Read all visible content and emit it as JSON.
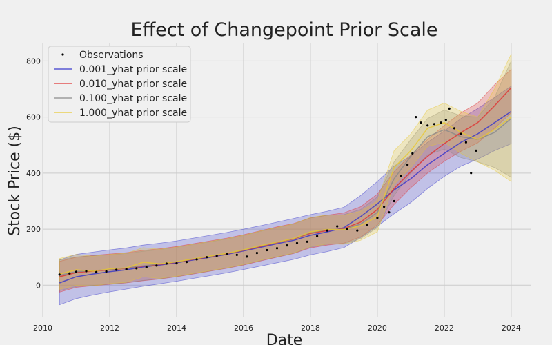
{
  "chart_data": {
    "type": "line",
    "title": "Effect of Changepoint Prior Scale",
    "xlabel": "Date",
    "ylabel": "Stock Price ($)",
    "xlim": [
      2010,
      2024.6
    ],
    "ylim": [
      -115,
      865
    ],
    "x_ticks": [
      2010,
      2012,
      2014,
      2016,
      2018,
      2020,
      2022,
      2024
    ],
    "y_ticks": [
      0,
      200,
      400,
      600,
      800
    ],
    "grid": true,
    "legend_position": "top-left",
    "colors": {
      "observations": "#000000",
      "s001": "#3333cc",
      "s010": "#e03030",
      "s100": "#888888",
      "s1000": "#e8c830"
    },
    "series": [
      {
        "name": "Observations",
        "kind": "scatter",
        "x": [
          2010.5,
          2010.8,
          2011.0,
          2011.3,
          2011.6,
          2011.9,
          2012.2,
          2012.5,
          2012.8,
          2013.1,
          2013.4,
          2013.7,
          2014.0,
          2014.3,
          2014.6,
          2014.9,
          2015.2,
          2015.5,
          2015.8,
          2016.1,
          2016.4,
          2016.7,
          2017.0,
          2017.3,
          2017.6,
          2017.9,
          2018.2,
          2018.5,
          2018.8,
          2019.1,
          2019.4,
          2019.7,
          2020.0,
          2020.2,
          2020.35,
          2020.5,
          2020.7,
          2020.9,
          2021.05,
          2021.15,
          2021.3,
          2021.5,
          2021.7,
          2021.9,
          2022.05,
          2022.15,
          2022.3,
          2022.5,
          2022.65,
          2022.8,
          2022.95
        ],
        "y": [
          38,
          42,
          48,
          50,
          47,
          49,
          55,
          57,
          60,
          64,
          70,
          77,
          78,
          83,
          92,
          100,
          105,
          112,
          108,
          102,
          115,
          125,
          132,
          142,
          150,
          155,
          175,
          195,
          210,
          200,
          195,
          215,
          240,
          280,
          260,
          300,
          390,
          430,
          470,
          600,
          580,
          570,
          575,
          580,
          590,
          630,
          560,
          540,
          510,
          400,
          480
        ]
      },
      {
        "name": "0.001_yhat prior scale",
        "kind": "line",
        "x": [
          2010.5,
          2011.0,
          2011.5,
          2012.0,
          2012.5,
          2013.0,
          2013.5,
          2014.0,
          2014.5,
          2015.0,
          2015.5,
          2016.0,
          2016.5,
          2017.0,
          2017.5,
          2018.0,
          2018.5,
          2019.0,
          2019.5,
          2020.0,
          2020.5,
          2021.0,
          2021.5,
          2022.0,
          2022.5,
          2023.0,
          2023.5,
          2024.0
        ],
        "y": [
          8,
          30,
          40,
          48,
          55,
          65,
          72,
          80,
          90,
          100,
          110,
          122,
          135,
          148,
          160,
          178,
          190,
          205,
          245,
          290,
          340,
          380,
          430,
          470,
          510,
          540,
          580,
          620
        ],
        "lower": [
          -70,
          -48,
          -35,
          -24,
          -14,
          -4,
          5,
          14,
          24,
          34,
          44,
          56,
          68,
          80,
          92,
          108,
          120,
          134,
          170,
          210,
          255,
          295,
          345,
          388,
          425,
          450,
          480,
          505
        ],
        "upper": [
          90,
          110,
          118,
          126,
          133,
          143,
          150,
          158,
          168,
          178,
          188,
          200,
          212,
          225,
          238,
          252,
          264,
          278,
          320,
          370,
          425,
          462,
          510,
          550,
          595,
          630,
          670,
          710
        ]
      },
      {
        "name": "0.010_yhat prior scale",
        "kind": "line",
        "x": [
          2010.5,
          2011.0,
          2011.5,
          2012.0,
          2012.5,
          2013.0,
          2013.5,
          2014.0,
          2014.5,
          2015.0,
          2015.5,
          2016.0,
          2016.5,
          2017.0,
          2017.5,
          2018.0,
          2018.5,
          2019.0,
          2019.5,
          2020.0,
          2020.5,
          2021.0,
          2021.5,
          2022.0,
          2022.5,
          2023.0,
          2023.5,
          2024.0
        ],
        "y": [
          30,
          45,
          50,
          55,
          60,
          68,
          74,
          82,
          92,
          102,
          112,
          124,
          138,
          152,
          165,
          185,
          195,
          202,
          225,
          270,
          345,
          405,
          460,
          505,
          545,
          580,
          640,
          705
        ],
        "lower": [
          -25,
          -8,
          -2,
          3,
          8,
          16,
          22,
          30,
          40,
          50,
          60,
          72,
          86,
          100,
          113,
          133,
          143,
          150,
          172,
          215,
          288,
          348,
          400,
          442,
          478,
          508,
          560,
          615
        ],
        "upper": [
          85,
          100,
          106,
          111,
          116,
          124,
          130,
          138,
          148,
          158,
          168,
          180,
          194,
          208,
          220,
          240,
          250,
          258,
          280,
          325,
          405,
          465,
          520,
          570,
          615,
          650,
          715,
          770
        ]
      },
      {
        "name": "0.100_yhat prior scale",
        "kind": "line",
        "x": [
          2010.5,
          2011.0,
          2011.5,
          2012.0,
          2012.5,
          2013.0,
          2013.5,
          2014.0,
          2014.5,
          2015.0,
          2015.5,
          2016.0,
          2016.5,
          2017.0,
          2017.5,
          2018.0,
          2018.5,
          2019.0,
          2019.5,
          2020.0,
          2020.5,
          2021.0,
          2021.5,
          2022.0,
          2022.5,
          2023.0,
          2023.5,
          2024.0
        ],
        "y": [
          35,
          48,
          52,
          56,
          61,
          69,
          75,
          83,
          93,
          103,
          113,
          125,
          140,
          153,
          166,
          188,
          198,
          200,
          218,
          260,
          380,
          460,
          530,
          555,
          530,
          520,
          545,
          595
        ],
        "lower": [
          -20,
          -5,
          -1,
          4,
          9,
          17,
          23,
          31,
          41,
          51,
          61,
          73,
          88,
          101,
          114,
          136,
          146,
          148,
          166,
          205,
          320,
          400,
          465,
          485,
          455,
          440,
          420,
          385
        ],
        "upper": [
          90,
          101,
          105,
          108,
          113,
          121,
          127,
          135,
          145,
          155,
          165,
          177,
          192,
          205,
          218,
          240,
          250,
          252,
          270,
          315,
          440,
          520,
          595,
          625,
          605,
          600,
          670,
          800
        ]
      },
      {
        "name": "1.000_yhat prior scale",
        "kind": "line",
        "x": [
          2010.5,
          2011.0,
          2011.5,
          2012.0,
          2012.5,
          2013.0,
          2013.5,
          2014.0,
          2014.5,
          2015.0,
          2015.5,
          2016.0,
          2016.5,
          2017.0,
          2017.5,
          2018.0,
          2018.5,
          2019.0,
          2019.5,
          2020.0,
          2020.5,
          2021.0,
          2021.5,
          2022.0,
          2022.5,
          2023.0,
          2023.5,
          2024.0
        ],
        "y": [
          40,
          55,
          50,
          58,
          62,
          82,
          76,
          84,
          94,
          104,
          114,
          126,
          141,
          154,
          167,
          190,
          199,
          198,
          212,
          245,
          420,
          480,
          560,
          580,
          545,
          520,
          555,
          600
        ],
        "lower": [
          -15,
          0,
          -3,
          6,
          10,
          30,
          24,
          32,
          42,
          52,
          62,
          74,
          89,
          102,
          115,
          138,
          147,
          146,
          160,
          190,
          360,
          420,
          495,
          510,
          470,
          440,
          410,
          370
        ],
        "upper": [
          95,
          110,
          103,
          110,
          114,
          134,
          128,
          136,
          146,
          156,
          166,
          178,
          193,
          206,
          219,
          242,
          251,
          250,
          264,
          300,
          480,
          540,
          625,
          650,
          620,
          600,
          700,
          825
        ]
      }
    ]
  }
}
